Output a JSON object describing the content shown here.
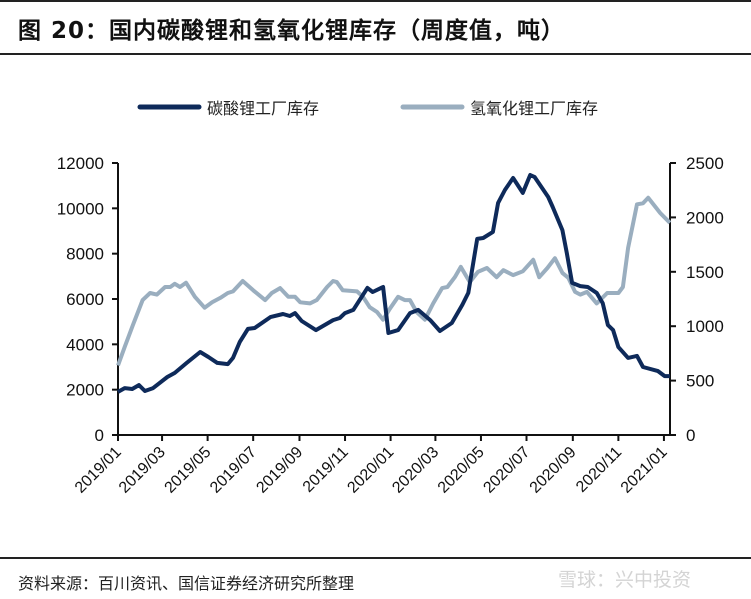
{
  "title": "图 20：国内碳酸锂和氢氧化锂库存（周度值，吨）",
  "source": "资料来源：百川资讯、国信证券经济研究所整理",
  "watermark": "雪球：兴中投资",
  "chart_data": {
    "type": "line",
    "title": "",
    "xlabel": "",
    "ylabel_left": "",
    "ylabel_right": "",
    "legend_position": "top",
    "grid": false,
    "x_range": [
      "2019-01-01",
      "2021-01-09"
    ],
    "x_ticks": [
      "2019/01",
      "2019/03",
      "2019/05",
      "2019/07",
      "2019/09",
      "2019/11",
      "2020/01",
      "2020/03",
      "2020/05",
      "2020/07",
      "2020/09",
      "2020/11",
      "2021/01"
    ],
    "y_left": {
      "range": [
        0,
        12000
      ],
      "ticks": [
        "0",
        "2000",
        "4000",
        "6000",
        "8000",
        "10000",
        "12000"
      ]
    },
    "y_right": {
      "range": [
        0,
        2500
      ],
      "ticks": [
        "0",
        "500",
        "1000",
        "1500",
        "2000",
        "2500"
      ]
    },
    "series": [
      {
        "name": "碳酸锂工厂库存",
        "axis": "left",
        "color": "#0e2a5a",
        "points": [
          [
            "2019-01-01",
            1900
          ],
          [
            "2019-01-10",
            2070
          ],
          [
            "2019-01-20",
            2030
          ],
          [
            "2019-01-29",
            2200
          ],
          [
            "2019-02-06",
            1940
          ],
          [
            "2019-02-17",
            2070
          ],
          [
            "2019-03-08",
            2560
          ],
          [
            "2019-03-18",
            2740
          ],
          [
            "2019-04-03",
            3180
          ],
          [
            "2019-04-21",
            3660
          ],
          [
            "2019-05-02",
            3440
          ],
          [
            "2019-05-14",
            3180
          ],
          [
            "2019-05-28",
            3130
          ],
          [
            "2019-06-04",
            3400
          ],
          [
            "2019-06-13",
            4100
          ],
          [
            "2019-06-24",
            4680
          ],
          [
            "2019-07-03",
            4720
          ],
          [
            "2019-07-24",
            5200
          ],
          [
            "2019-08-10",
            5340
          ],
          [
            "2019-08-19",
            5250
          ],
          [
            "2019-08-26",
            5380
          ],
          [
            "2019-09-04",
            5030
          ],
          [
            "2019-09-23",
            4630
          ],
          [
            "2019-10-16",
            5070
          ],
          [
            "2019-10-25",
            5160
          ],
          [
            "2019-11-01",
            5380
          ],
          [
            "2019-11-12",
            5520
          ],
          [
            "2019-12-01",
            6490
          ],
          [
            "2019-12-08",
            6310
          ],
          [
            "2019-12-22",
            6530
          ],
          [
            "2019-12-29",
            4500
          ],
          [
            "2020-01-11",
            4630
          ],
          [
            "2020-01-27",
            5380
          ],
          [
            "2020-02-07",
            5520
          ],
          [
            "2020-02-23",
            5070
          ],
          [
            "2020-03-07",
            4590
          ],
          [
            "2020-03-23",
            4940
          ],
          [
            "2020-04-06",
            5740
          ],
          [
            "2020-04-14",
            6270
          ],
          [
            "2020-04-26",
            8650
          ],
          [
            "2020-05-04",
            8690
          ],
          [
            "2020-05-17",
            8960
          ],
          [
            "2020-05-24",
            10240
          ],
          [
            "2020-06-02",
            10810
          ],
          [
            "2020-06-13",
            11340
          ],
          [
            "2020-06-26",
            10680
          ],
          [
            "2020-07-06",
            11470
          ],
          [
            "2020-07-12",
            11380
          ],
          [
            "2020-07-30",
            10500
          ],
          [
            "2020-08-05",
            10060
          ],
          [
            "2020-08-18",
            9040
          ],
          [
            "2020-08-24",
            8030
          ],
          [
            "2020-08-31",
            6710
          ],
          [
            "2020-09-11",
            6570
          ],
          [
            "2020-09-21",
            6530
          ],
          [
            "2020-10-03",
            6270
          ],
          [
            "2020-10-11",
            5820
          ],
          [
            "2020-10-18",
            4850
          ],
          [
            "2020-10-25",
            4630
          ],
          [
            "2020-11-01",
            3880
          ],
          [
            "2020-11-14",
            3400
          ],
          [
            "2020-11-26",
            3490
          ],
          [
            "2020-12-04",
            3000
          ],
          [
            "2020-12-24",
            2820
          ],
          [
            "2021-01-02",
            2600
          ],
          [
            "2021-01-09",
            2600
          ]
        ]
      },
      {
        "name": "氢氧化锂工厂库存",
        "axis": "right",
        "color": "#9aaebf",
        "points": [
          [
            "2019-01-01",
            640
          ],
          [
            "2019-01-10",
            810
          ],
          [
            "2019-01-21",
            1010
          ],
          [
            "2019-02-03",
            1240
          ],
          [
            "2019-02-13",
            1305
          ],
          [
            "2019-02-22",
            1290
          ],
          [
            "2019-03-05",
            1360
          ],
          [
            "2019-03-12",
            1360
          ],
          [
            "2019-03-18",
            1390
          ],
          [
            "2019-03-25",
            1360
          ],
          [
            "2019-04-02",
            1400
          ],
          [
            "2019-04-14",
            1270
          ],
          [
            "2019-04-27",
            1170
          ],
          [
            "2019-05-07",
            1220
          ],
          [
            "2019-05-18",
            1260
          ],
          [
            "2019-05-28",
            1305
          ],
          [
            "2019-06-04",
            1320
          ],
          [
            "2019-06-17",
            1415
          ],
          [
            "2019-07-01",
            1330
          ],
          [
            "2019-07-17",
            1240
          ],
          [
            "2019-07-26",
            1305
          ],
          [
            "2019-08-06",
            1350
          ],
          [
            "2019-08-17",
            1270
          ],
          [
            "2019-08-26",
            1270
          ],
          [
            "2019-09-02",
            1220
          ],
          [
            "2019-09-15",
            1210
          ],
          [
            "2019-09-24",
            1240
          ],
          [
            "2019-10-08",
            1360
          ],
          [
            "2019-10-16",
            1415
          ],
          [
            "2019-10-21",
            1405
          ],
          [
            "2019-10-29",
            1330
          ],
          [
            "2019-11-17",
            1320
          ],
          [
            "2019-11-25",
            1270
          ],
          [
            "2019-12-04",
            1175
          ],
          [
            "2019-12-14",
            1130
          ],
          [
            "2019-12-22",
            1060
          ],
          [
            "2019-12-31",
            1160
          ],
          [
            "2020-01-11",
            1270
          ],
          [
            "2020-01-20",
            1240
          ],
          [
            "2020-01-27",
            1240
          ],
          [
            "2020-02-05",
            1130
          ],
          [
            "2020-02-16",
            1060
          ],
          [
            "2020-02-27",
            1210
          ],
          [
            "2020-03-10",
            1350
          ],
          [
            "2020-03-17",
            1360
          ],
          [
            "2020-03-27",
            1450
          ],
          [
            "2020-04-04",
            1545
          ],
          [
            "2020-04-16",
            1405
          ],
          [
            "2020-04-27",
            1500
          ],
          [
            "2020-05-09",
            1535
          ],
          [
            "2020-05-22",
            1450
          ],
          [
            "2020-05-31",
            1515
          ],
          [
            "2020-06-13",
            1470
          ],
          [
            "2020-06-26",
            1505
          ],
          [
            "2020-07-10",
            1610
          ],
          [
            "2020-07-18",
            1450
          ],
          [
            "2020-07-29",
            1535
          ],
          [
            "2020-08-08",
            1625
          ],
          [
            "2020-08-18",
            1490
          ],
          [
            "2020-08-26",
            1445
          ],
          [
            "2020-09-04",
            1315
          ],
          [
            "2020-09-11",
            1290
          ],
          [
            "2020-09-20",
            1315
          ],
          [
            "2020-10-03",
            1210
          ],
          [
            "2020-10-17",
            1305
          ],
          [
            "2020-11-01",
            1305
          ],
          [
            "2020-11-07",
            1360
          ],
          [
            "2020-11-14",
            1720
          ],
          [
            "2020-11-26",
            2120
          ],
          [
            "2020-12-04",
            2130
          ],
          [
            "2020-12-11",
            2180
          ],
          [
            "2020-12-27",
            2040
          ],
          [
            "2021-01-09",
            1950
          ]
        ]
      }
    ]
  }
}
